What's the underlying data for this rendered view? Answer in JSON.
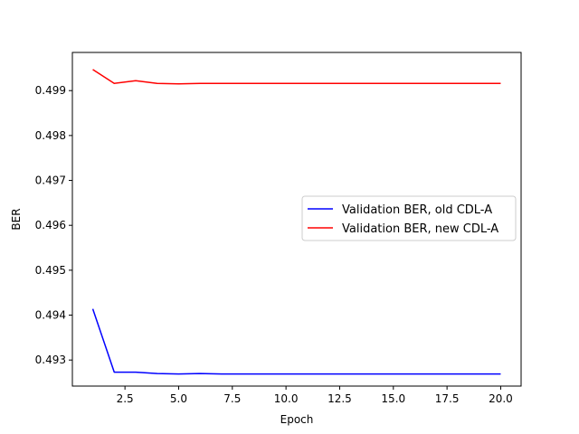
{
  "chart_data": {
    "type": "line",
    "title": "",
    "xlabel": "Epoch",
    "ylabel": "BER",
    "xlim": [
      0.05,
      20.95
    ],
    "ylim": [
      0.49242,
      0.49985
    ],
    "xticks": [
      2.5,
      5.0,
      7.5,
      10.0,
      12.5,
      15.0,
      17.5,
      20.0
    ],
    "xtick_labels": [
      "2.5",
      "5.0",
      "7.5",
      "10.0",
      "12.5",
      "15.0",
      "17.5",
      "20.0"
    ],
    "yticks": [
      0.493,
      0.494,
      0.495,
      0.496,
      0.497,
      0.498,
      0.499
    ],
    "ytick_labels": [
      "0.493",
      "0.494",
      "0.495",
      "0.496",
      "0.497",
      "0.498",
      "0.499"
    ],
    "grid": false,
    "legend_position": "center-right",
    "x": [
      1,
      2,
      3,
      4,
      5,
      6,
      7,
      8,
      9,
      10,
      11,
      12,
      13,
      14,
      15,
      16,
      17,
      18,
      19,
      20
    ],
    "series": [
      {
        "name": "Validation BER, old CDL-A",
        "color": "#0000ff",
        "values": [
          0.49414,
          0.49273,
          0.49273,
          0.4927,
          0.49269,
          0.4927,
          0.49269,
          0.49269,
          0.49269,
          0.49269,
          0.49269,
          0.49269,
          0.49269,
          0.49269,
          0.49269,
          0.49269,
          0.49269,
          0.49269,
          0.49269,
          0.49269
        ]
      },
      {
        "name": "Validation BER, new CDL-A",
        "color": "#ff0000",
        "values": [
          0.49947,
          0.49916,
          0.49922,
          0.49916,
          0.49915,
          0.49916,
          0.49916,
          0.49916,
          0.49916,
          0.49916,
          0.49916,
          0.49916,
          0.49916,
          0.49916,
          0.49916,
          0.49916,
          0.49916,
          0.49916,
          0.49916,
          0.49916
        ]
      }
    ]
  }
}
